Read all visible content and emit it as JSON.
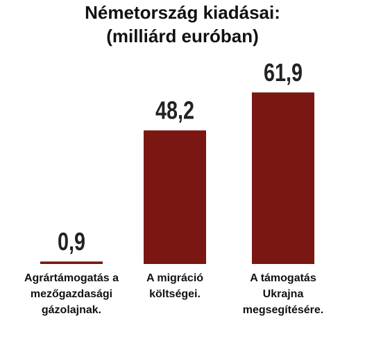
{
  "chart_data": {
    "type": "bar",
    "title": "Németország kiadásai:",
    "subtitle": "(milliárd euróban)",
    "categories": [
      "Agrártámogatás a\nmezőgazdasági\ngázolajnak.",
      "A migráció\nköltségei.",
      "A támogatás\nUkrajna\nmegsegítésére."
    ],
    "values": [
      0.9,
      48.2,
      61.9
    ],
    "value_labels": [
      "0,9",
      "48,2",
      "61,9"
    ],
    "color": "#7a1712",
    "ylim": [
      0,
      62
    ]
  }
}
